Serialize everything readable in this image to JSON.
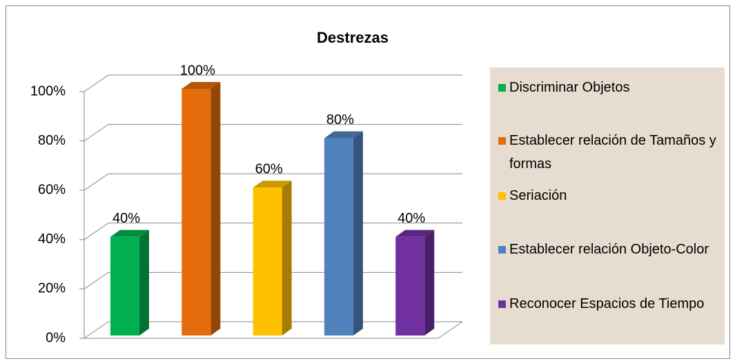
{
  "chart_data": {
    "type": "bar3d",
    "title": "Destrezas",
    "categories": [
      "Discriminar Objetos",
      "Establecer relación de Tamaños y formas",
      "Seriación",
      "Establecer relación Objeto-Color",
      "Reconocer Espacios de Tiempo"
    ],
    "values": [
      40,
      100,
      60,
      80,
      40
    ],
    "value_labels": [
      "40%",
      "100%",
      "60%",
      "80%",
      "40%"
    ],
    "colors": [
      "#00b050",
      "#e46c0a",
      "#ffc000",
      "#4f81bd",
      "#7030a0"
    ],
    "ylim": [
      0,
      100
    ],
    "yticks": [
      {
        "value": 0,
        "label": "0%"
      },
      {
        "value": 20,
        "label": "20%"
      },
      {
        "value": 40,
        "label": "40%"
      },
      {
        "value": 60,
        "label": "60%"
      },
      {
        "value": 80,
        "label": "80%"
      },
      {
        "value": 100,
        "label": "100%"
      }
    ],
    "grid": true,
    "legend": "right"
  }
}
